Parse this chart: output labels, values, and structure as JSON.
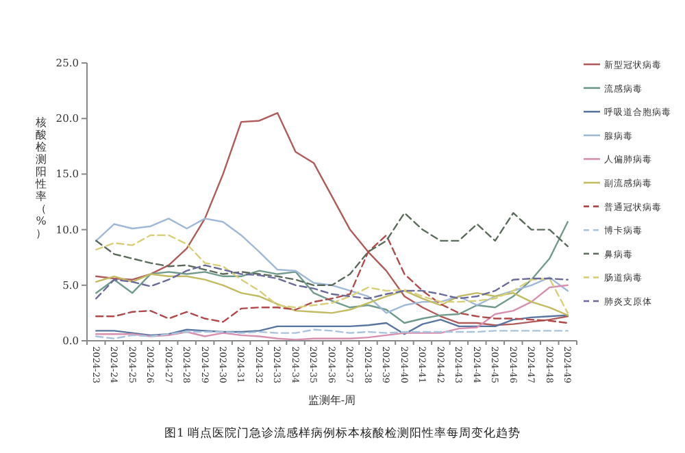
{
  "chart_data": {
    "type": "line",
    "ylabel": "核酸检测阳性率（%）",
    "xlabel": "监测年-周",
    "annotations": [
      "图1 哨点医院门急诊流感样病例标本核酸检测阳性率每周变化趋势"
    ],
    "categories": [
      "2024-23",
      "2024-24",
      "2024-25",
      "2024-26",
      "2024-27",
      "2024-28",
      "2024-29",
      "2024-30",
      "2024-31",
      "2024-32",
      "2024-33",
      "2024-34",
      "2024-35",
      "2024-36",
      "2024-37",
      "2024-38",
      "2024-39",
      "2024-40",
      "2024-41",
      "2024-42",
      "2024-43",
      "2024-44",
      "2024-45",
      "2024-46",
      "2024-47",
      "2024-48",
      "2024-49"
    ],
    "ylim": [
      0,
      25
    ],
    "yticks": [
      {
        "value": 0,
        "label": "0.0"
      },
      {
        "value": 5,
        "label": "5.0"
      },
      {
        "value": 10,
        "label": "10.0"
      },
      {
        "value": 15,
        "label": "15.0"
      },
      {
        "value": 20,
        "label": "20.0"
      },
      {
        "value": 25,
        "label": "25.0"
      }
    ],
    "grid": false,
    "legend": "right",
    "marker": "none",
    "series": [
      {
        "name": "新型冠状病毒",
        "color": "#b05a5a",
        "line_style": "solid",
        "values": [
          5.8,
          5.6,
          5.5,
          6.0,
          6.8,
          8.3,
          11,
          15,
          19.7,
          19.8,
          20.5,
          17,
          16,
          13,
          10,
          8,
          6.3,
          4.0,
          3.0,
          2.2,
          1.6,
          1.6,
          1.4,
          1.5,
          1.7,
          1.9,
          2.2
        ]
      },
      {
        "name": "流感病毒",
        "color": "#6f9a8c",
        "line_style": "solid",
        "values": [
          4.3,
          5.5,
          4.3,
          6.0,
          6.2,
          6.0,
          6.2,
          5.8,
          5.8,
          6.3,
          6.0,
          6.2,
          4.3,
          3.6,
          3.0,
          3.2,
          2.8,
          1.6,
          2.0,
          2.3,
          2.4,
          3.2,
          3.0,
          4.0,
          5.5,
          7.4,
          10.7
        ]
      },
      {
        "name": "呼吸道合胞病毒",
        "color": "#5875a0",
        "line_style": "solid",
        "values": [
          0.9,
          0.9,
          0.7,
          0.5,
          0.6,
          1.0,
          0.9,
          0.8,
          0.8,
          0.9,
          1.3,
          1.3,
          1.3,
          1.3,
          1.3,
          1.4,
          1.6,
          0.6,
          1.5,
          1.9,
          1.3,
          1.3,
          1.3,
          1.9,
          2.1,
          2.2,
          2.3
        ]
      },
      {
        "name": "腺病毒",
        "color": "#9fb9d6",
        "line_style": "solid",
        "values": [
          9.0,
          10.5,
          10.1,
          10.3,
          11,
          10.1,
          11,
          10.7,
          9.5,
          8,
          6.4,
          6.3,
          5.2,
          5.0,
          4.5,
          4.0,
          2.5,
          3.2,
          3.5,
          3.5,
          4.0,
          3.2,
          4.0,
          4.5,
          5.0,
          5.7,
          4.5
        ]
      },
      {
        "name": "人偏肺病毒",
        "color": "#d88fb0",
        "line_style": "solid",
        "values": [
          0.6,
          0.6,
          0.6,
          0.4,
          0.5,
          0.8,
          0.4,
          0.7,
          0.5,
          0.4,
          0.2,
          0.1,
          0.2,
          0.2,
          0.2,
          0.3,
          0.5,
          0.7,
          0.7,
          0.7,
          1.1,
          1.2,
          2.4,
          2.7,
          3.5,
          4.8,
          5.0
        ]
      },
      {
        "name": "副流感病毒",
        "color": "#c2bb62",
        "line_style": "solid",
        "values": [
          5.3,
          5.8,
          5.3,
          6.0,
          5.8,
          5.8,
          5.5,
          5.0,
          4.3,
          4.0,
          3.3,
          2.7,
          2.6,
          2.5,
          2.8,
          3.4,
          4.0,
          4.5,
          3.8,
          3.2,
          4.0,
          4.3,
          4.0,
          4.3,
          3.5,
          3.0,
          2.3
        ]
      },
      {
        "name": "普通冠状病毒",
        "color": "#b04a4a",
        "line_style": "dashed",
        "values": [
          2.2,
          2.2,
          2.6,
          2.7,
          2.0,
          2.6,
          2.0,
          1.7,
          2.9,
          3.0,
          3.0,
          2.8,
          3.5,
          3.8,
          4.2,
          8,
          9.5,
          6,
          4.5,
          3.3,
          2.5,
          2.2,
          2.0,
          2.0,
          1.9,
          1.8,
          1.6
        ]
      },
      {
        "name": "博卡病毒",
        "color": "#a9c4dc",
        "line_style": "dashed",
        "values": [
          0.4,
          0.2,
          0.5,
          0.4,
          0.6,
          0.8,
          0.8,
          0.8,
          0.7,
          0.8,
          0.7,
          0.7,
          1.0,
          0.9,
          0.7,
          0.8,
          0.7,
          0.8,
          0.8,
          0.8,
          0.8,
          0.8,
          0.9,
          0.9,
          0.9,
          0.9,
          0.9
        ]
      },
      {
        "name": "鼻病毒",
        "color": "#5b6b5b",
        "line_style": "dashed",
        "values": [
          9.0,
          7.8,
          7.4,
          7.0,
          6.7,
          6.8,
          6.4,
          6.0,
          6.2,
          6.0,
          5.8,
          5.5,
          5.0,
          5.0,
          6,
          8,
          9,
          11.5,
          10,
          9,
          9,
          10.5,
          9,
          11.5,
          10,
          10,
          8.5
        ]
      },
      {
        "name": "肠道病毒",
        "color": "#d8cf7a",
        "line_style": "dashed",
        "values": [
          8.2,
          8.8,
          8.6,
          9.5,
          9.5,
          8.7,
          7.0,
          6.7,
          5.5,
          4.5,
          3.2,
          3.0,
          3.2,
          3.4,
          4.0,
          4.8,
          4.5,
          4.6,
          4.0,
          3.5,
          3.5,
          3.6,
          3.8,
          4.5,
          5.5,
          5.6,
          2.5
        ]
      },
      {
        "name": "肺炎支原体",
        "color": "#6a6a9a",
        "line_style": "dashed",
        "values": [
          3.8,
          5.5,
          5.3,
          4.9,
          5.5,
          6.3,
          6.8,
          6.4,
          6.0,
          5.9,
          5.6,
          5.0,
          4.7,
          4.2,
          4.0,
          3.8,
          4.2,
          4.5,
          4.5,
          4.2,
          3.8,
          4.0,
          4.5,
          5.5,
          5.6,
          5.6,
          5.5
        ]
      }
    ]
  }
}
